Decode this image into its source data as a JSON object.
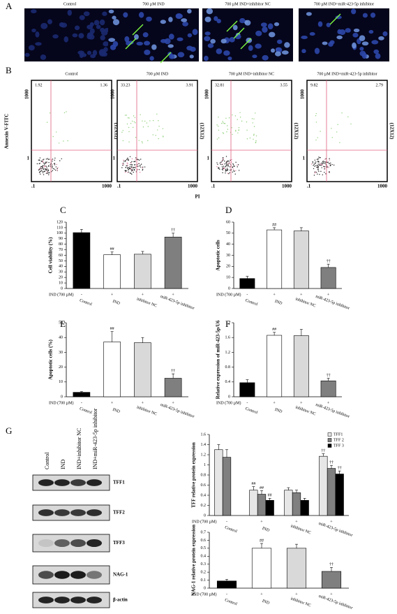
{
  "microscopy": {
    "label": "A",
    "titles": [
      "Control",
      "700 µM IND",
      "700 µM IND+inhibitor NC",
      "700 µM IND+miR-423-5p inhibitor"
    ]
  },
  "flow": {
    "label": "B",
    "titles": [
      "Control",
      "700 µM IND",
      "700 µM IND+inhibitor NC",
      "700 µM IND+miR-423-5p inhibitor"
    ],
    "y_label": "Annexin V-FITC",
    "x_label": "PI",
    "upper_left": [
      1.92,
      33.23,
      32.81,
      9.82
    ],
    "upper_right": [
      1.36,
      3.91,
      3.55,
      2.79
    ],
    "axis_texts": {
      "y_top": "1000",
      "y_low": "1",
      "x_left": ".1",
      "x_right": "1000",
      "marker": "(12X12)"
    }
  },
  "chart_data": [
    {
      "type": "bar",
      "panel": "C",
      "y_label": "Cell viability (%)",
      "x_prefix": "IND (700 µM)",
      "signs": [
        "-",
        "+",
        "+",
        "+"
      ],
      "categories": [
        "Control",
        "IND",
        "inhibitor NC",
        "miR-423-5p inhibitor"
      ],
      "values": [
        101,
        61,
        62,
        93
      ],
      "errors": [
        6,
        5,
        5,
        7
      ],
      "colors": [
        "#000000",
        "#ffffff",
        "#d9d9d9",
        "#7f7f7f"
      ],
      "annotations": [
        null,
        "##",
        null,
        "††"
      ],
      "ylim": [
        0,
        120
      ],
      "yticks": [
        0,
        10,
        20,
        30,
        40,
        50,
        60,
        70,
        80,
        90,
        100,
        110,
        120
      ]
    },
    {
      "type": "bar",
      "panel": "D",
      "y_label": "Apoptotic cells",
      "x_prefix": "IND (700 µM)",
      "signs": [
        "-",
        "+",
        "+",
        "+"
      ],
      "categories": [
        "Control",
        "IND",
        "inhibitor NC",
        "miR-423-5p inhibitor"
      ],
      "values": [
        9,
        53,
        52,
        19
      ],
      "errors": [
        2,
        2,
        3,
        3
      ],
      "colors": [
        "#000000",
        "#ffffff",
        "#d9d9d9",
        "#7f7f7f"
      ],
      "annotations": [
        null,
        "##",
        null,
        "††"
      ],
      "ylim": [
        0,
        60
      ],
      "yticks": [
        0,
        10,
        20,
        30,
        40,
        50,
        60
      ]
    },
    {
      "type": "bar",
      "panel": "E",
      "y_label": "Apoptotic cells (%)",
      "x_prefix": "IND (700 µM)",
      "signs": [
        "-",
        "+",
        "+",
        "+"
      ],
      "categories": [
        "Control",
        "IND",
        "inhibitor NC",
        "miR-423-5p inhibitor"
      ],
      "values": [
        3,
        37,
        36.5,
        12.5
      ],
      "errors": [
        0.5,
        7,
        3.5,
        3
      ],
      "colors": [
        "#000000",
        "#ffffff",
        "#d9d9d9",
        "#7f7f7f"
      ],
      "annotations": [
        null,
        "##",
        null,
        "††"
      ],
      "ylim": [
        0,
        50
      ],
      "yticks": [
        0,
        10,
        20,
        30,
        40,
        50
      ]
    },
    {
      "type": "bar",
      "panel": "F",
      "y_label": "Relative expression of miR-423-5p/U6",
      "x_prefix": "IND (700 µM)",
      "signs": [
        "-",
        "+",
        "+",
        "+"
      ],
      "categories": [
        "Control",
        "IND",
        "inhibitor NC",
        "miR-423-5p inhibitor"
      ],
      "values": [
        0.38,
        1.66,
        1.65,
        0.43
      ],
      "errors": [
        0.08,
        0.08,
        0.17,
        0.07
      ],
      "colors": [
        "#000000",
        "#ffffff",
        "#d9d9d9",
        "#7f7f7f"
      ],
      "annotations": [
        null,
        "##",
        null,
        "††"
      ],
      "ylim": [
        0,
        2
      ],
      "yticks": [
        0,
        0.4,
        0.8,
        1.2,
        1.6,
        2
      ]
    },
    {
      "type": "grouped-bar",
      "y_label": "TFF relative protein expression",
      "x_prefix": "IND (700 µM)",
      "signs": [
        "-",
        "+",
        "+",
        "+"
      ],
      "categories": [
        "Control",
        "IND",
        "inhibitor NC",
        "miR-423-5p inhibitor"
      ],
      "legend": "top-right",
      "series": [
        {
          "name": "TFF1",
          "color": "#e6e6e6",
          "values": [
            1.3,
            0.5,
            0.5,
            1.17
          ],
          "errors": [
            0.1,
            0.07,
            0.05,
            0.05
          ],
          "annotations": [
            null,
            "##",
            null,
            "††"
          ]
        },
        {
          "name": "TFF 2",
          "color": "#808080",
          "values": [
            1.15,
            0.42,
            0.45,
            0.93
          ],
          "errors": [
            0.15,
            0.07,
            0.05,
            0.06
          ],
          "annotations": [
            null,
            "##",
            null,
            "††"
          ]
        },
        {
          "name": "TFF 3",
          "color": "#000000",
          "values": [
            null,
            0.3,
            0.3,
            0.82
          ],
          "errors": [
            null,
            0.04,
            0.04,
            0.06
          ],
          "annotations": [
            null,
            "##",
            null,
            "††"
          ]
        }
      ],
      "ylim": [
        0,
        1.6
      ],
      "yticks": [
        0,
        0.2,
        0.4,
        0.6,
        0.8,
        1,
        1.2,
        1.4,
        1.6
      ]
    },
    {
      "type": "bar",
      "y_label": "NAG-1 relative protein expression",
      "x_prefix": "IND (700 µM)",
      "signs": [
        "-",
        "+",
        "+",
        "+"
      ],
      "categories": [
        "Control",
        "IND",
        "inhibitor NC",
        "miR-423-5p inhibitor"
      ],
      "values": [
        0.09,
        0.5,
        0.5,
        0.21
      ],
      "errors": [
        0.02,
        0.06,
        0.05,
        0.05
      ],
      "colors": [
        "#000000",
        "#ffffff",
        "#d9d9d9",
        "#7f7f7f"
      ],
      "annotations": [
        null,
        "##",
        null,
        "††"
      ],
      "ylim": [
        0,
        0.7
      ],
      "yticks": [
        0,
        0.1,
        0.2,
        0.3,
        0.4,
        0.5,
        0.6,
        0.7
      ]
    }
  ],
  "blot": {
    "label": "G",
    "lanes": [
      "Control",
      "IND",
      "IND+inhibitor NC",
      "IND+miR-423-5p inhibitor"
    ],
    "proteins": [
      "TFF1",
      "TFF2",
      "TFF3",
      "NAG-1",
      "β-actin"
    ]
  }
}
